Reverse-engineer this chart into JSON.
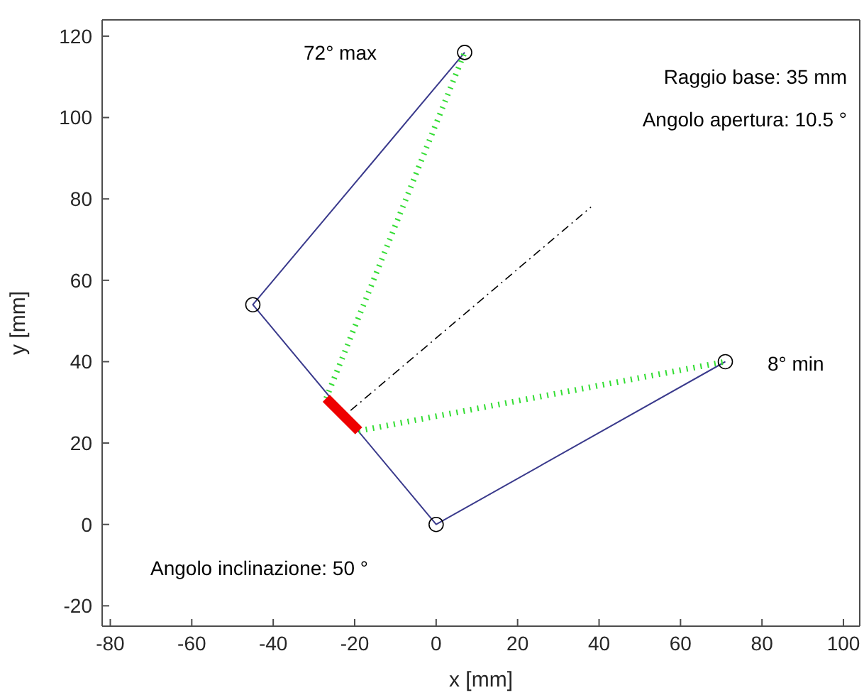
{
  "chart_data": {
    "type": "line",
    "xlabel": "x [mm]",
    "ylabel": "y [mm]",
    "xlim": [
      -82,
      104
    ],
    "xticks": [
      -80,
      -60,
      -40,
      -20,
      0,
      20,
      40,
      60,
      80,
      100
    ],
    "ylim": [
      -25,
      124
    ],
    "yticks": [
      -20,
      0,
      20,
      40,
      60,
      80,
      100,
      120
    ],
    "series": [
      {
        "color": "#3a3a8c",
        "marker": "circle",
        "line_style": "solid",
        "x": [
          7,
          -45,
          0,
          71
        ],
        "values": [
          116,
          54,
          0,
          40
        ]
      },
      {
        "color": "#33dd33",
        "marker": "none",
        "line_style": "dotted",
        "x": [
          -27,
          7
        ],
        "values": [
          31,
          116
        ]
      },
      {
        "color": "#33dd33",
        "marker": "none",
        "line_style": "dotted",
        "x": [
          -19,
          71
        ],
        "values": [
          23,
          40
        ]
      },
      {
        "color": "#ee0000",
        "marker": "none",
        "line_style": "solid",
        "x": [
          -27,
          -19
        ],
        "values": [
          31,
          23
        ]
      },
      {
        "color": "#000000",
        "marker": "none",
        "line_style": "dashed",
        "x": [
          -21,
          38
        ],
        "values": [
          28,
          78
        ]
      }
    ],
    "annotations": [
      "72° max",
      "8° min",
      "Raggio base: 35 mm",
      "Angolo apertura: 10.5 °",
      "Angolo inclinazione: 50 °"
    ]
  }
}
